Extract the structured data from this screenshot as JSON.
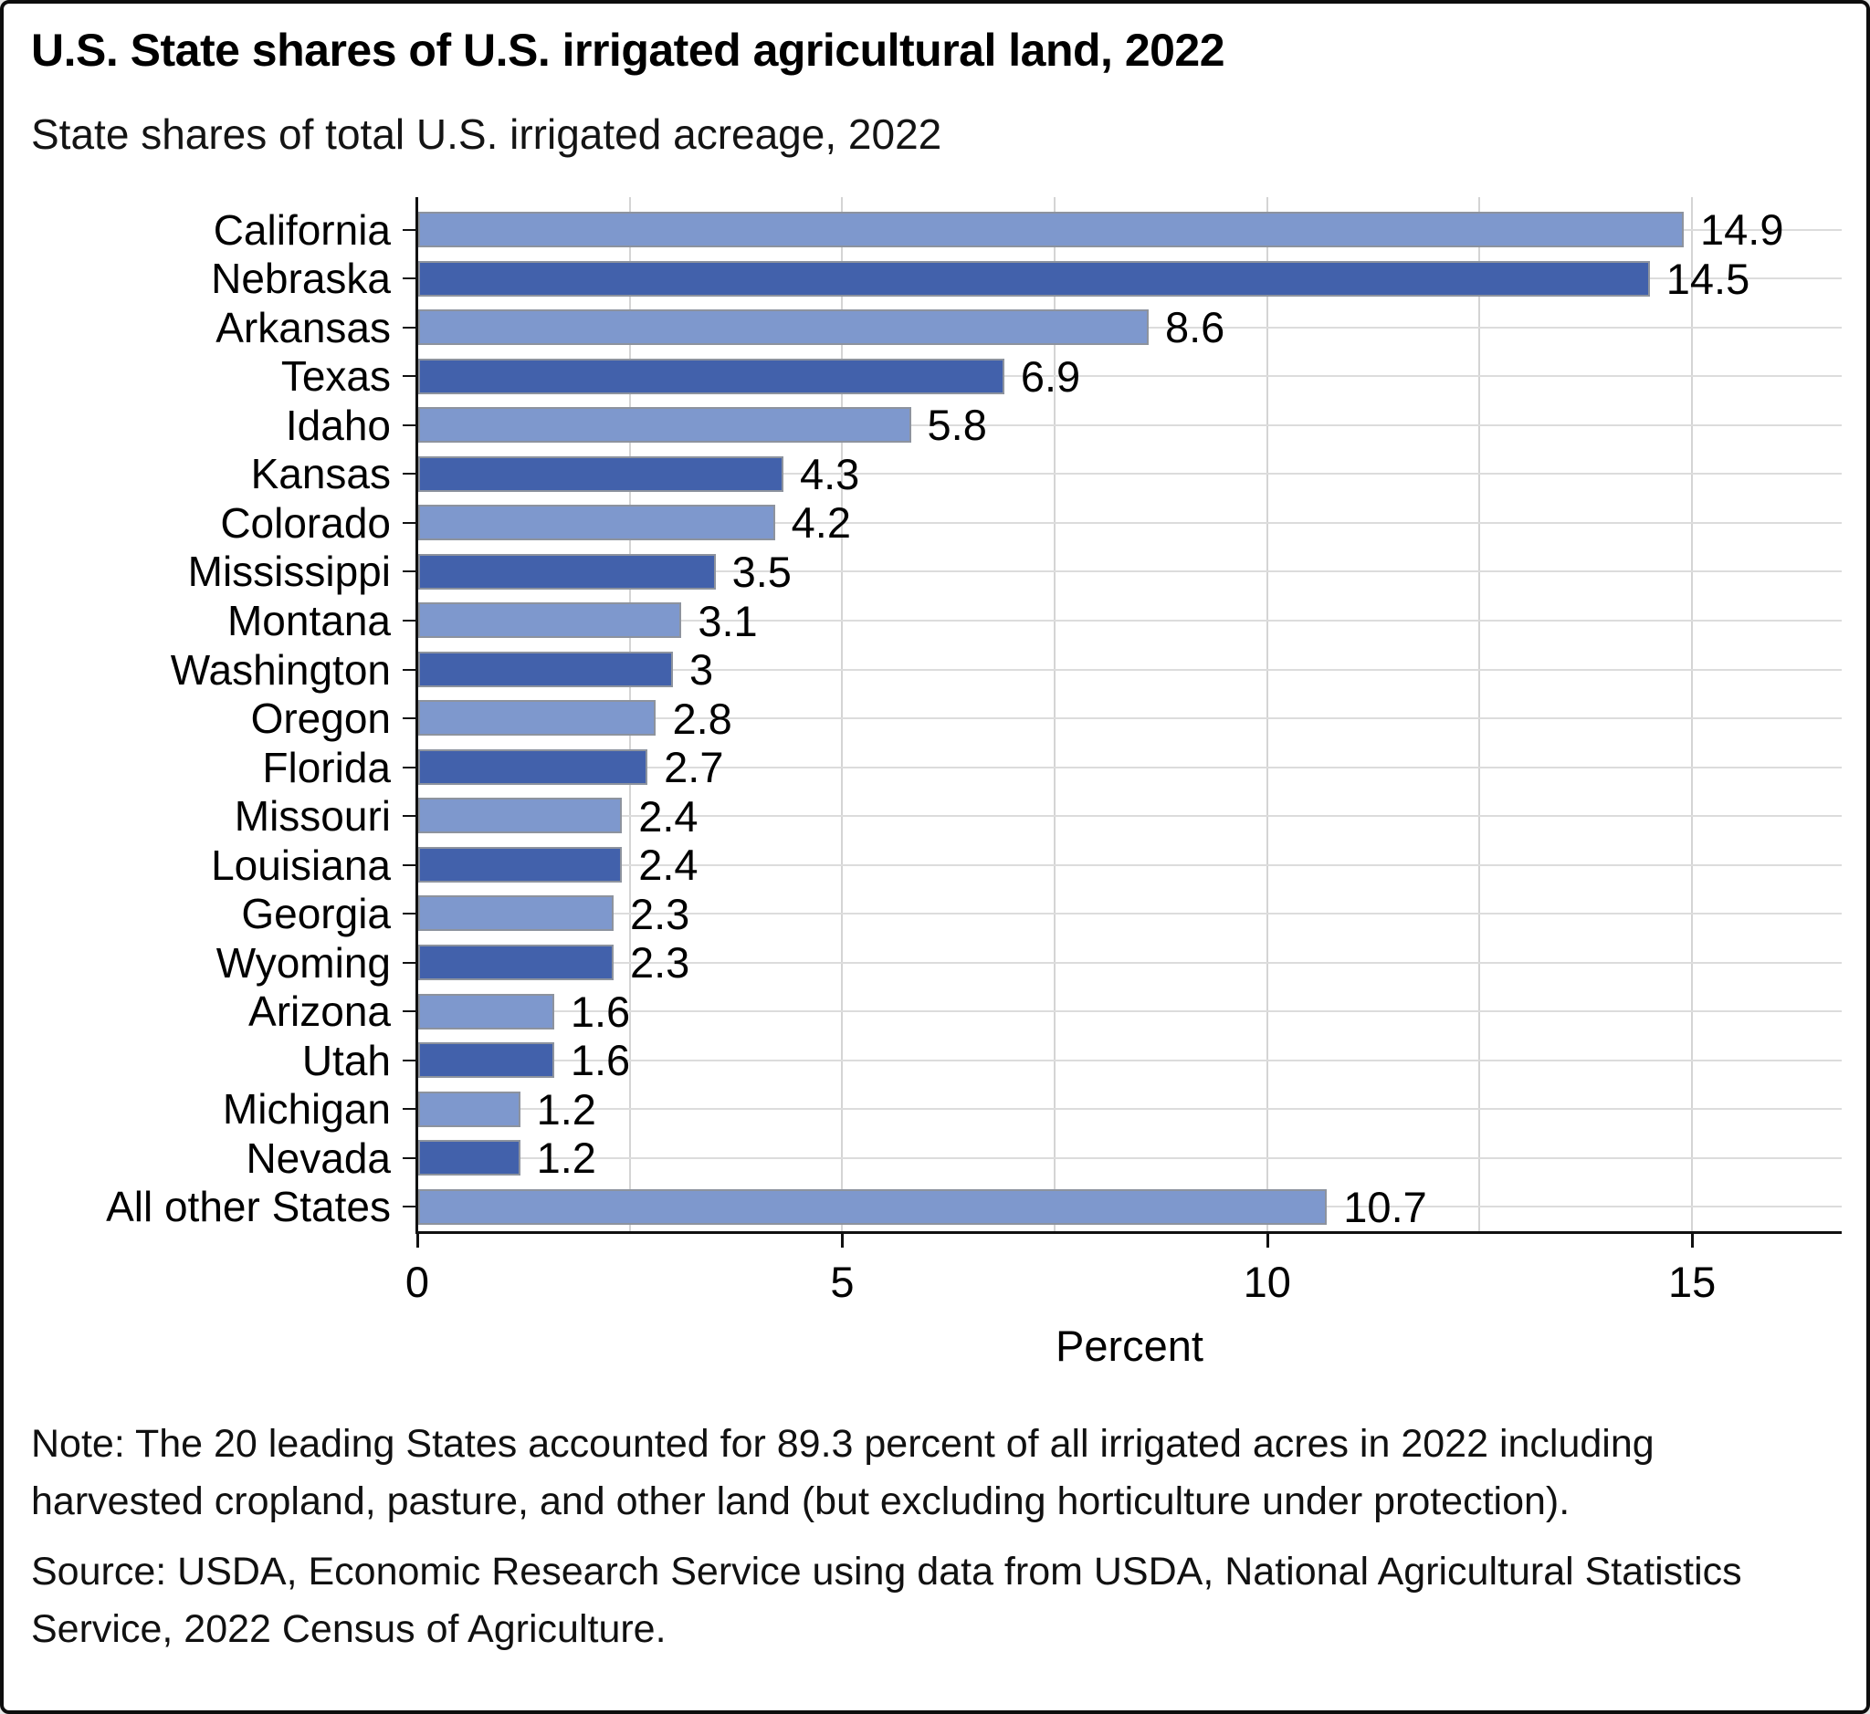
{
  "card": {
    "title": "U.S. State shares of U.S. irrigated agricultural land, 2022",
    "subtitle": "State shares of total U.S. irrigated acreage, 2022",
    "note": "Note: The 20 leading States accounted for 89.3 percent of all irrigated acres in 2022 including harvested cropland, pasture, and other land (but excluding horticulture under protection).",
    "source": "Source: USDA, Economic Research Service using data from USDA, National Agricultural Statistics Service, 2022 Census of Agriculture."
  },
  "chart_data": {
    "type": "bar",
    "orientation": "horizontal",
    "title": "U.S. State shares of U.S. irrigated agricultural land, 2022",
    "subtitle": "State shares of total U.S. irrigated acreage, 2022",
    "xlabel": "Percent",
    "xlim": [
      0,
      16.76
    ],
    "xticks": [
      0,
      5,
      10,
      15
    ],
    "vertical_gridlines": [
      2.5,
      5,
      7.5,
      10,
      12.5,
      15
    ],
    "grid": "horizontal line per category + vertical lines every 2.5",
    "legend": "none",
    "categories": [
      "California",
      "Nebraska",
      "Arkansas",
      "Texas",
      "Idaho",
      "Kansas",
      "Colorado",
      "Mississippi",
      "Montana",
      "Washington",
      "Oregon",
      "Florida",
      "Missouri",
      "Louisiana",
      "Georgia",
      "Wyoming",
      "Arizona",
      "Utah",
      "Michigan",
      "Nevada",
      "All other States"
    ],
    "values": [
      14.9,
      14.5,
      8.6,
      6.9,
      5.8,
      4.3,
      4.2,
      3.5,
      3.1,
      3.0,
      2.8,
      2.7,
      2.4,
      2.4,
      2.3,
      2.3,
      1.6,
      1.6,
      1.2,
      1.2,
      10.7
    ],
    "value_labels": [
      "14.9",
      "14.5",
      "8.6",
      "6.9",
      "5.8",
      "4.3",
      "4.2",
      "3.5",
      "3.1",
      "3",
      "2.8",
      "2.7",
      "2.4",
      "2.4",
      "2.3",
      "2.3",
      "1.6",
      "1.6",
      "1.2",
      "1.2",
      "10.7"
    ],
    "colors": {
      "bar_light": "#7e98cd",
      "bar_dark": "#4261ab",
      "bar_edge": "#8d939e",
      "gridline": "#d4d4d4",
      "row_gridline": "#dcdcdc",
      "axis": "#111111"
    },
    "color_pattern": "alternating light/dark starting light at top"
  }
}
